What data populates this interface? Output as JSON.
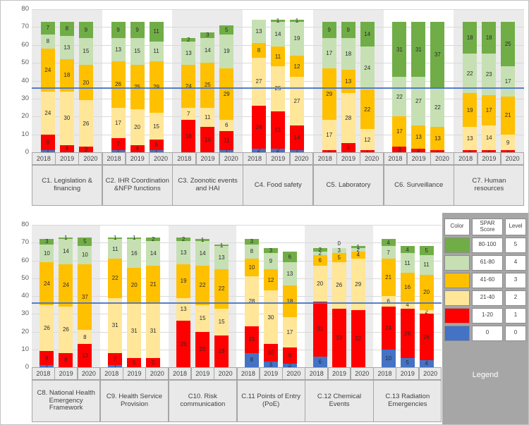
{
  "colors": {
    "levels": [
      "#4472c4",
      "#ff0000",
      "#ffe699",
      "#ffc000",
      "#c6e0b4",
      "#70ad47"
    ],
    "reference_line": "#4472c4",
    "band": "#ebebeb",
    "legend_panel": "#a6a6a6"
  },
  "legend": {
    "header": {
      "color": "Color",
      "score": "SPAR Score",
      "level": "Level"
    },
    "rows": [
      {
        "score": "80-100",
        "level": "5",
        "color_level": 5
      },
      {
        "score": "61-80",
        "level": "4",
        "color_level": 4
      },
      {
        "score": "41-60",
        "level": "3",
        "color_level": 3
      },
      {
        "score": "21-40",
        "level": "2",
        "color_level": 2
      },
      {
        "score": "1-20",
        "level": "1",
        "color_level": 1
      },
      {
        "score": "0",
        "level": "0",
        "color_level": 0
      }
    ],
    "title": "Legend"
  },
  "chart_data": [
    {
      "type": "bar",
      "stacked": true,
      "ylim": [
        0,
        80
      ],
      "yticks": [
        0,
        10,
        20,
        30,
        40,
        50,
        60,
        70,
        80
      ],
      "reference_line": 36,
      "years": [
        "2018",
        "2019",
        "2020"
      ],
      "stack_levels": [
        "0",
        "1-20",
        "21-40",
        "41-60",
        "61-80",
        "80-100"
      ],
      "categories": [
        {
          "label": "C1. Legislation & financing",
          "series": {
            "2018": [
              1,
              9,
              24,
              24,
              8,
              7
            ],
            "2019": [
              0,
              4,
              30,
              18,
              13,
              8
            ],
            "2020": [
              0,
              3,
              26,
              20,
              15,
              9
            ]
          }
        },
        {
          "label": "C2. IHR Coordination &NFP functions",
          "series": {
            "2018": [
              1,
              7,
              17,
              26,
              13,
              9
            ],
            "2019": [
              0,
              4,
              20,
              25,
              15,
              9
            ],
            "2020": [
              1,
              6,
              15,
              29,
              11,
              11
            ]
          }
        },
        {
          "label": "C3. Zoonotic events and HAI",
          "series": {
            "2018": [
              0,
              18,
              7,
              24,
              13,
              2
            ],
            "2019": [
              0,
              14,
              11,
              25,
              14,
              3
            ],
            "2020": [
              1,
              11,
              6,
              29,
              19,
              5
            ]
          }
        },
        {
          "label": "C4. Food safety",
          "series": {
            "2018": [
              2,
              24,
              27,
              8,
              13,
              0
            ],
            "2019": [
              2,
              21,
              25,
              11,
              14,
              1
            ],
            "2020": [
              1,
              14,
              27,
              12,
              19,
              1
            ]
          }
        },
        {
          "label": "C5. Laboratory",
          "series": {
            "2018": [
              0,
              1,
              17,
              29,
              17,
              9
            ],
            "2019": [
              0,
              5,
              28,
              13,
              18,
              9
            ],
            "2020": [
              0,
              1,
              12,
              22,
              24,
              14
            ]
          }
        },
        {
          "label": "C6. Surveillance",
          "series": {
            "2018": [
              0,
              3,
              0,
              17,
              22,
              31
            ],
            "2019": [
              0,
              2,
              0,
              13,
              27,
              31
            ],
            "2020": [
              0,
              1,
              0,
              13,
              22,
              37
            ]
          }
        },
        {
          "label": "C7. Human resources",
          "series": {
            "2018": [
              0,
              1,
              13,
              19,
              22,
              18
            ],
            "2019": [
              0,
              1,
              14,
              17,
              23,
              18
            ],
            "2020": [
              0,
              1,
              9,
              21,
              17,
              25
            ]
          }
        }
      ],
      "annotations": []
    },
    {
      "type": "bar",
      "stacked": true,
      "ylim": [
        0,
        80
      ],
      "yticks": [
        0,
        10,
        20,
        30,
        40,
        50,
        60,
        70,
        80
      ],
      "reference_line": 36,
      "years": [
        "2018",
        "2019",
        "2020"
      ],
      "stack_levels": [
        "0",
        "1-20",
        "21-40",
        "41-60",
        "61-80",
        "80-100"
      ],
      "categories": [
        {
          "label": "C8. National Health Emergency Framework",
          "series": {
            "2018": [
              1,
              8,
              26,
              24,
              10,
              3
            ],
            "2019": [
              0,
              8,
              26,
              24,
              14,
              1
            ],
            "2020": [
              0,
              13,
              8,
              37,
              10,
              5
            ]
          }
        },
        {
          "label": "C9. Health Service Provision",
          "series": {
            "2018": [
              1,
              7,
              31,
              22,
              11,
              1
            ],
            "2019": [
              0,
              5,
              31,
              20,
              16,
              1
            ],
            "2020": [
              0,
              5,
              31,
              21,
              14,
              2
            ]
          }
        },
        {
          "label": "C10. Risk communication",
          "series": {
            "2018": [
              0,
              26,
              13,
              19,
              13,
              2
            ],
            "2019": [
              0,
              20,
              15,
              22,
              14,
              1
            ],
            "2020": [
              0,
              18,
              15,
              22,
              13,
              1
            ]
          }
        },
        {
          "label": "C.11 Points of Entry (PoE)",
          "series": {
            "2018": [
              8,
              15,
              28,
              10,
              8,
              3
            ],
            "2019": [
              3,
              10,
              30,
              12,
              9,
              3
            ],
            "2020": [
              2,
              9,
              17,
              18,
              13,
              6
            ]
          }
        },
        {
          "label": "C.12 Chemical Events",
          "series": {
            "2018": [
              6,
              31,
              20,
              6,
              2,
              2
            ],
            "2019": [
              0,
              33,
              26,
              5,
              3,
              0
            ],
            "2020": [
              0,
              32,
              29,
              4,
              2,
              1
            ]
          }
        },
        {
          "label": "C.13 Radiation Emergencies",
          "series": {
            "2018": [
              10,
              24,
              6,
              21,
              7,
              4
            ],
            "2019": [
              5,
              28,
              4,
              16,
              11,
              4
            ],
            "2020": [
              4,
              26,
              2,
              20,
              11,
              5
            ]
          }
        }
      ],
      "annotations": [
        {
          "category_index": 4,
          "year_index": 1,
          "text": "0"
        }
      ]
    }
  ]
}
